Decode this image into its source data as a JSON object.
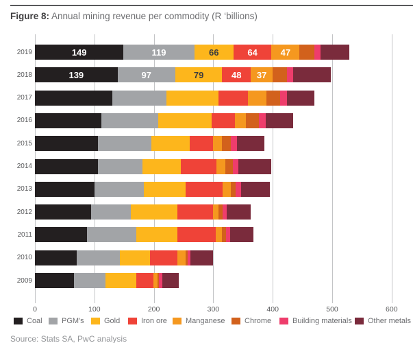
{
  "figure": {
    "title_bold": "Figure 8:",
    "title_rest": " Annual mining revenue per commodity (R ‘billions)",
    "source": "Source: Stats SA, PwC analysis"
  },
  "chart_data": {
    "type": "bar",
    "orientation": "horizontal",
    "stacked": true,
    "title": "Annual mining revenue per commodity (R 'billions)",
    "xlabel": "",
    "ylabel": "",
    "xlim": [
      0,
      600
    ],
    "xticks": [
      "0",
      "100",
      "200",
      "300",
      "400",
      "500",
      "600"
    ],
    "grid": "vertical",
    "legend_position": "bottom",
    "categories": [
      "2019",
      "2018",
      "2017",
      "2016",
      "2015",
      "2014",
      "2013",
      "2012",
      "2011",
      "2010",
      "2009"
    ],
    "series": [
      {
        "name": "Coal",
        "color": "#231f20",
        "label_color": "#ffffff",
        "values": [
          149,
          139,
          130,
          112,
          106,
          106,
          100,
          95,
          88,
          70,
          66
        ]
      },
      {
        "name": "PGM's",
        "color": "#a2a4a7",
        "label_color": "#ffffff",
        "values": [
          119,
          97,
          91,
          95,
          90,
          75,
          83,
          66,
          82,
          73,
          53
        ]
      },
      {
        "name": "Gold",
        "color": "#fdb61c",
        "label_color": "#3d3d3f",
        "values": [
          66,
          79,
          88,
          90,
          64,
          64,
          71,
          79,
          70,
          51,
          51
        ]
      },
      {
        "name": "Iron ore",
        "color": "#ef4338",
        "label_color": "#ffffff",
        "values": [
          64,
          48,
          49,
          40,
          40,
          60,
          62,
          60,
          64,
          46,
          29
        ]
      },
      {
        "name": "Manganese",
        "color": "#f5981f",
        "label_color": "#ffffff",
        "values": [
          47,
          37,
          31,
          18,
          15,
          15,
          13,
          9,
          11,
          13,
          7
        ]
      },
      {
        "name": "Chrome",
        "color": "#d2611c",
        "label_color": "#ffffff",
        "values": [
          25,
          24,
          24,
          22,
          14,
          13,
          9,
          7,
          7,
          4,
          2
        ]
      },
      {
        "name": "Building materials",
        "color": "#ee3d6c",
        "label_color": "#ffffff",
        "values": [
          10,
          10,
          11,
          11,
          11,
          9,
          9,
          7,
          6,
          5,
          6
        ]
      },
      {
        "name": "Other metals",
        "color": "#7a2b3c",
        "label_color": "#ffffff",
        "values": [
          49,
          64,
          46,
          46,
          46,
          55,
          48,
          40,
          40,
          38,
          28
        ]
      }
    ],
    "bar_labels": {
      "labeled_rows": [
        0,
        1
      ],
      "labeled_series_count": 5,
      "2019": [
        149,
        119,
        66,
        64,
        47
      ],
      "2018": [
        139,
        97,
        79,
        48,
        37
      ]
    }
  }
}
